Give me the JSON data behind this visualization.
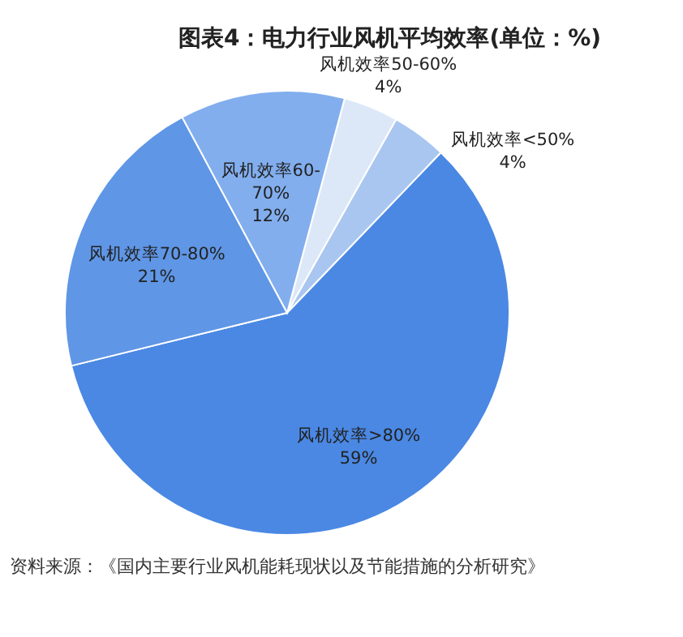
{
  "chart_data": {
    "type": "pie",
    "title": "图表4：电力行业风机平均效率(单位：%)",
    "categories": [
      "风机效率50-60%",
      "风机效率<50%",
      "风机效率>80%",
      "风机效率70-80%",
      "风机效率60-70%"
    ],
    "values": [
      4,
      4,
      59,
      21,
      12
    ],
    "colors": [
      "#dce8f8",
      "#a8c6f0",
      "#4a88e3",
      "#5f96e6",
      "#82aeee"
    ],
    "value_labels": [
      "4%",
      "4%",
      "59%",
      "21%",
      "12%"
    ],
    "annotations": [
      "资料来源：《国内主要行业风机能耗现状以及节能措施的分析研究》"
    ]
  }
}
